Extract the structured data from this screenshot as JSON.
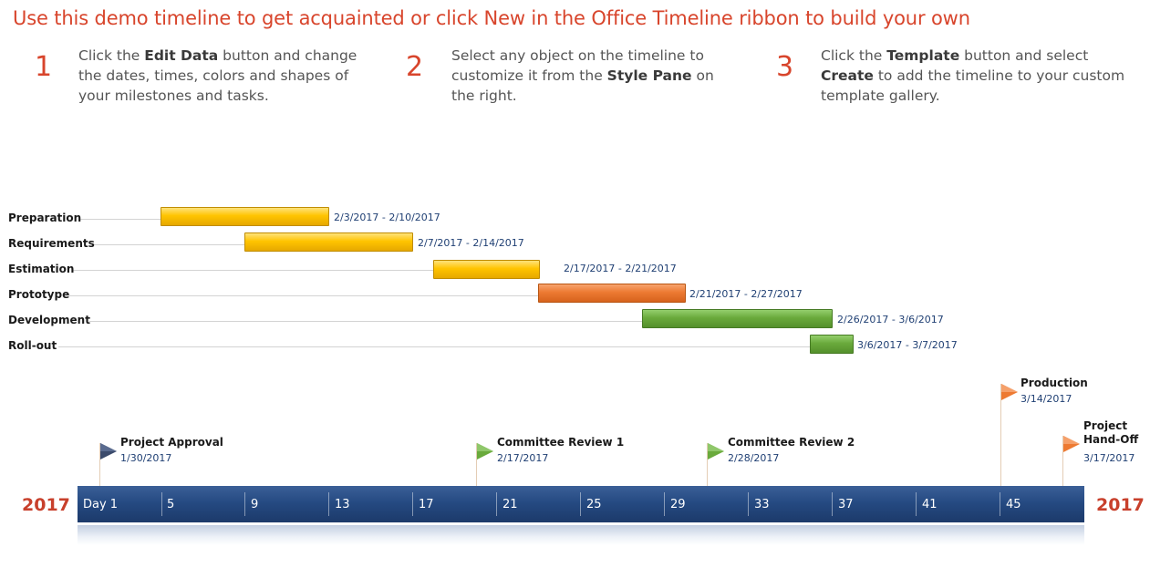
{
  "headline": "Use this demo timeline to get acquainted or click New in the Office Timeline ribbon to build your own",
  "steps": [
    {
      "num": "1",
      "pre": "Click the ",
      "bold1": "Edit Data",
      "mid": " button and change the dates, times, colors and shapes of your milestones and tasks.",
      "bold2": "",
      "post": ""
    },
    {
      "num": "2",
      "pre": "Select any object on the timeline to customize it from the ",
      "bold1": "Style Pane",
      "mid": " on the right.",
      "bold2": "",
      "post": ""
    },
    {
      "num": "3",
      "pre": "Click the ",
      "bold1": "Template",
      "mid": " button and select ",
      "bold2": "Create",
      "post": " to add the timeline to your custom template gallery."
    }
  ],
  "tasks": [
    {
      "label": "Preparation",
      "dates": "2/3/2017 - 2/10/2017",
      "color": "yellow"
    },
    {
      "label": "Requirements",
      "dates": "2/7/2017 - 2/14/2017",
      "color": "yellow"
    },
    {
      "label": "Estimation",
      "dates": "2/17/2017 - 2/21/2017",
      "color": "yellow"
    },
    {
      "label": "Prototype",
      "dates": "2/21/2017 - 2/27/2017",
      "color": "orange"
    },
    {
      "label": "Development",
      "dates": "2/26/2017 - 3/6/2017",
      "color": "green"
    },
    {
      "label": "Roll-out",
      "dates": "3/6/2017 - 3/7/2017",
      "color": "green"
    }
  ],
  "milestones": [
    {
      "title": "Project Approval",
      "date": "1/30/2017",
      "flag_color": "#3b4a6b"
    },
    {
      "title": "Committee Review 1",
      "date": "2/17/2017",
      "flag_color": "#6aaa3c"
    },
    {
      "title": "Committee Review 2",
      "date": "2/28/2017",
      "flag_color": "#6aaa3c"
    },
    {
      "title": "Production",
      "date": "3/14/2017",
      "flag_color": "#ed7a32"
    },
    {
      "title_line1": "Project",
      "title_line2": "Hand-Off",
      "date": "3/17/2017",
      "flag_color": "#ed7a32"
    }
  ],
  "axis": {
    "year_left": "2017",
    "year_right": "2017",
    "ticks": [
      "Day 1",
      "5",
      "9",
      "13",
      "17",
      "21",
      "25",
      "29",
      "33",
      "37",
      "41",
      "45"
    ]
  },
  "colors": {
    "accent": "#d8452c",
    "axis": "#254a82",
    "yellow": "#ffc400",
    "orange": "#ed7a32",
    "green": "#6aaa3c"
  }
}
